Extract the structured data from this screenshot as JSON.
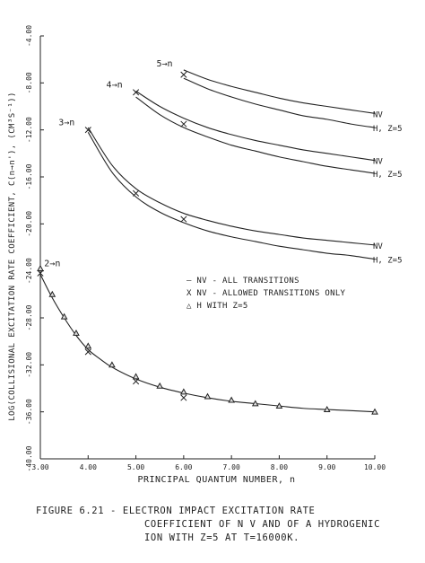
{
  "chart_data": {
    "type": "line",
    "xlabel": "PRINCIPAL QUANTUM NUMBER, n",
    "ylabel": "LOG(COLLISIONAL EXCITATION RATE COEFFICIENT, C(n→n'), (CM³S⁻¹))",
    "xlim": [
      3.0,
      10.0
    ],
    "ylim": [
      -40.0,
      -4.0
    ],
    "x_ticks": [
      3,
      4,
      5,
      6,
      7,
      8,
      9,
      10
    ],
    "x_tick_labels": [
      "3.00",
      "4.00",
      "5.00",
      "6.00",
      "7.00",
      "8.00",
      "9.00",
      "10.00"
    ],
    "y_ticks": [
      -4,
      -8,
      -12,
      -16,
      -20,
      -24,
      -28,
      -32,
      -36,
      -40
    ],
    "y_tick_labels": [
      "-4.00",
      "-8.00",
      "-12.00",
      "-16.00",
      "-20.00",
      "-24.00",
      "-28.00",
      "-32.00",
      "-36.00",
      "-40.00"
    ],
    "grid": false,
    "legend_position": "center-right",
    "legend": [
      {
        "marker": "line",
        "label": "— NV - ALL TRANSITIONS"
      },
      {
        "marker": "x",
        "label": "X NV - ALLOWED TRANSITIONS ONLY"
      },
      {
        "marker": "triangle",
        "label": "△ H WITH Z=5"
      }
    ],
    "series": [
      {
        "group": "5→n",
        "name": "NV",
        "x": [
          6,
          6.5,
          7,
          7.5,
          8,
          8.5,
          9,
          9.5,
          10
        ],
        "y": [
          -6.9,
          -7.7,
          -8.3,
          -8.8,
          -9.3,
          -9.7,
          -10.0,
          -10.3,
          -10.6
        ]
      },
      {
        "group": "5→n",
        "name": "H, Z=5",
        "x": [
          6,
          6.5,
          7,
          7.5,
          8,
          8.5,
          9,
          9.5,
          10
        ],
        "y": [
          -7.6,
          -8.5,
          -9.2,
          -9.8,
          -10.3,
          -10.8,
          -11.1,
          -11.5,
          -11.8
        ]
      },
      {
        "group": "4→n",
        "name": "NV",
        "x": [
          5,
          5.5,
          6,
          6.5,
          7,
          7.5,
          8,
          8.5,
          9,
          9.5,
          10
        ],
        "y": [
          -8.7,
          -10.0,
          -11.0,
          -11.8,
          -12.4,
          -12.9,
          -13.3,
          -13.7,
          -14.0,
          -14.3,
          -14.6
        ]
      },
      {
        "group": "4→n",
        "name": "H, Z=5",
        "x": [
          5,
          5.5,
          6,
          6.5,
          7,
          7.5,
          8,
          8.5,
          9,
          9.5,
          10
        ],
        "y": [
          -9.2,
          -10.7,
          -11.8,
          -12.6,
          -13.3,
          -13.8,
          -14.3,
          -14.7,
          -15.1,
          -15.4,
          -15.7
        ]
      },
      {
        "group": "3→n",
        "name": "NV",
        "x": [
          4,
          4.5,
          5,
          5.5,
          6,
          6.5,
          7,
          7.5,
          8,
          8.5,
          9,
          9.5,
          10
        ],
        "y": [
          -11.8,
          -15.0,
          -17.0,
          -18.2,
          -19.1,
          -19.7,
          -20.2,
          -20.6,
          -20.9,
          -21.2,
          -21.4,
          -21.6,
          -21.8
        ]
      },
      {
        "group": "3→n",
        "name": "H, Z=5",
        "x": [
          4,
          4.5,
          5,
          5.5,
          6,
          6.5,
          7,
          7.5,
          8,
          8.5,
          9,
          9.5,
          10
        ],
        "y": [
          -12.2,
          -15.6,
          -17.7,
          -19.0,
          -19.9,
          -20.6,
          -21.1,
          -21.5,
          -21.9,
          -22.2,
          -22.5,
          -22.7,
          -23.0
        ]
      },
      {
        "group": "2→n",
        "name": "NV",
        "x": [
          3,
          3.25,
          3.5,
          3.75,
          4,
          4.25,
          4.5,
          5,
          5.5,
          6,
          6.5,
          7,
          7.5,
          8,
          8.5,
          9,
          9.5,
          10
        ],
        "y": [
          -24.3,
          -26.3,
          -28.0,
          -29.5,
          -30.7,
          -31.5,
          -32.2,
          -33.2,
          -33.9,
          -34.4,
          -34.8,
          -35.1,
          -35.3,
          -35.5,
          -35.7,
          -35.8,
          -35.9,
          -36.0
        ]
      }
    ],
    "markers_x": [
      {
        "x": 3.0,
        "y": -24.2
      },
      {
        "x": 4.0,
        "y": -30.9
      },
      {
        "x": 5.0,
        "y": -33.4
      },
      {
        "x": 6.0,
        "y": -34.8
      },
      {
        "x": 6.0,
        "y": -11.5
      },
      {
        "x": 5.0,
        "y": -17.4
      },
      {
        "x": 6.0,
        "y": -19.6
      },
      {
        "x": 5.0,
        "y": -8.8
      },
      {
        "x": 6.0,
        "y": -7.3
      },
      {
        "x": 4.0,
        "y": -12.0
      }
    ],
    "markers_triangle": [
      {
        "x": 3.0,
        "y": -23.8
      },
      {
        "x": 3.25,
        "y": -26.0
      },
      {
        "x": 3.5,
        "y": -27.9
      },
      {
        "x": 3.75,
        "y": -29.3
      },
      {
        "x": 4.0,
        "y": -30.4
      },
      {
        "x": 4.5,
        "y": -32.0
      },
      {
        "x": 5.0,
        "y": -33.0
      },
      {
        "x": 5.5,
        "y": -33.8
      },
      {
        "x": 6.0,
        "y": -34.3
      },
      {
        "x": 6.5,
        "y": -34.7
      },
      {
        "x": 7.0,
        "y": -35.0
      },
      {
        "x": 7.5,
        "y": -35.3
      },
      {
        "x": 8.0,
        "y": -35.5
      },
      {
        "x": 9.0,
        "y": -35.8
      },
      {
        "x": 10.0,
        "y": -36.0
      }
    ],
    "group_labels": [
      {
        "text": "5→n",
        "x": 5.6,
        "y": -6.6
      },
      {
        "text": "4→n",
        "x": 4.55,
        "y": -8.4
      },
      {
        "text": "3→n",
        "x": 3.55,
        "y": -11.6
      },
      {
        "text": "2→n",
        "x": 3.25,
        "y": -23.6
      }
    ],
    "end_labels": [
      {
        "text": "NV",
        "y": -10.6
      },
      {
        "text": "H, Z=5",
        "y": -11.8
      },
      {
        "text": "NV",
        "y": -14.6
      },
      {
        "text": "H, Z=5",
        "y": -15.7
      },
      {
        "text": "NV",
        "y": -21.8
      },
      {
        "text": "H, Z=5",
        "y": -23.0
      }
    ]
  },
  "caption": {
    "line1": "FIGURE 6.21 - ELECTRON IMPACT EXCITATION RATE",
    "line2": "COEFFICIENT OF N V AND OF A HYDROGENIC",
    "line3": "ION WITH Z=5 AT T=16000K."
  }
}
